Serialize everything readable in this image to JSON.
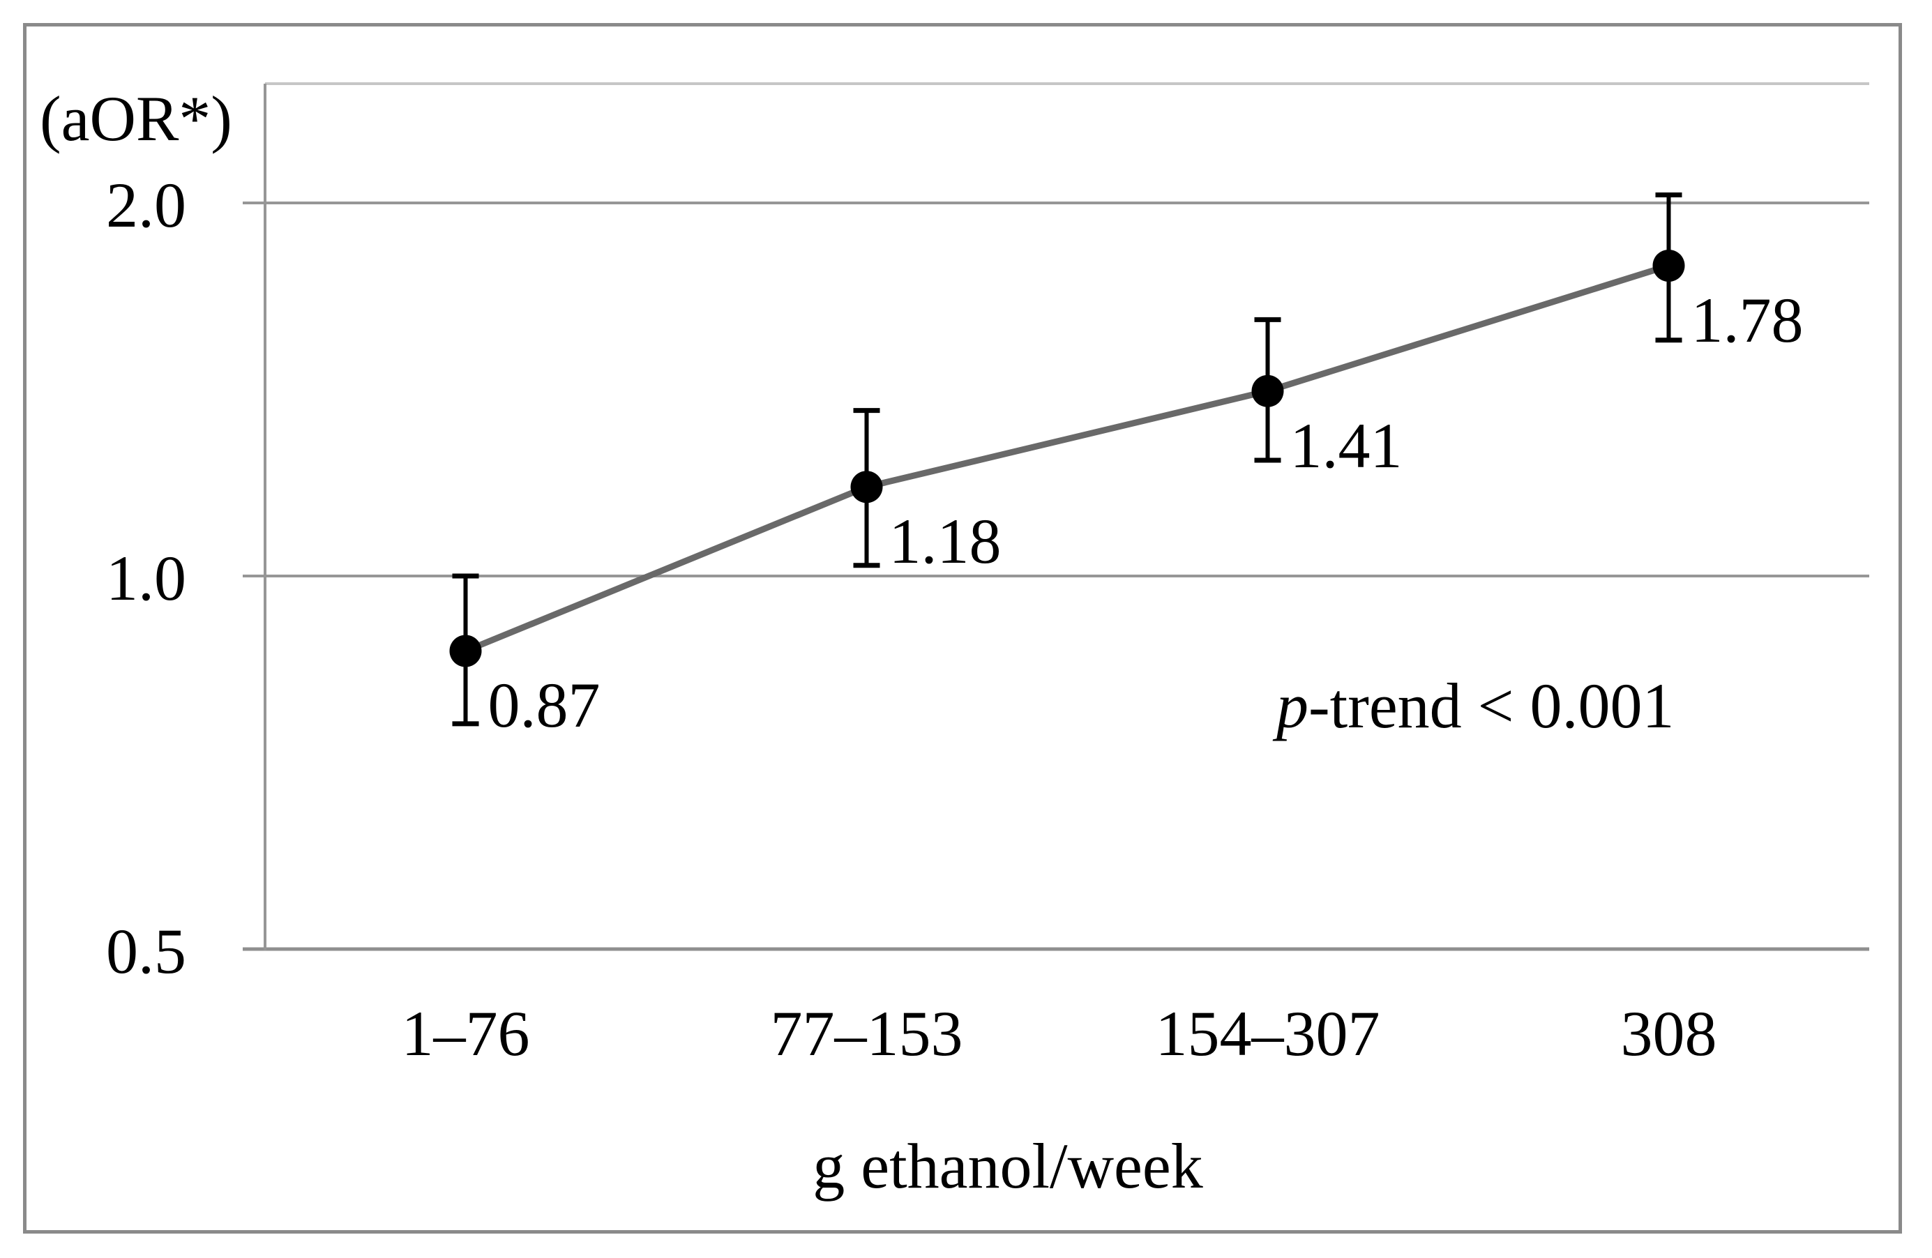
{
  "figure": {
    "ylabel": "(aOR*)",
    "xlabel": "g ethanol/week",
    "annotation": {
      "p_italic": "p",
      "rest": "-trend < 0.001"
    }
  },
  "chart_data": {
    "type": "line",
    "title": "",
    "ylabel": "(aOR*)",
    "xlabel": "g ethanol/week",
    "y_scale": "log",
    "ylim": [
      0.5,
      2.5
    ],
    "grid": "horizontal-only",
    "legend": "none",
    "categories": [
      "1–76",
      "77–153",
      "154–307",
      "308"
    ],
    "yticks": [
      {
        "value": 2.0,
        "label": "2.0"
      },
      {
        "value": 1.0,
        "label": "1.0"
      },
      {
        "value": 0.5,
        "label": "0.5"
      }
    ],
    "series": [
      {
        "name": "aOR",
        "values": [
          0.87,
          1.18,
          1.41,
          1.78
        ],
        "point_labels": [
          "0.87",
          "1.18",
          "1.41",
          "1.78"
        ],
        "ci_low_estimated": [
          0.76,
          1.02,
          1.24,
          1.55
        ],
        "ci_high_estimated": [
          1.0,
          1.36,
          1.61,
          2.03
        ],
        "marker": "filled-circle"
      }
    ],
    "annotation": "p-trend < 0.001",
    "colors": {
      "marker": "#000000",
      "error_bar": "#000000",
      "line": "#696969",
      "grid": "#969696",
      "axis": "#8f8f8f",
      "plot_top_border": "#c6c6c6",
      "outer_border": "#8a8a8a",
      "text": "#000000",
      "background": "#ffffff"
    }
  }
}
